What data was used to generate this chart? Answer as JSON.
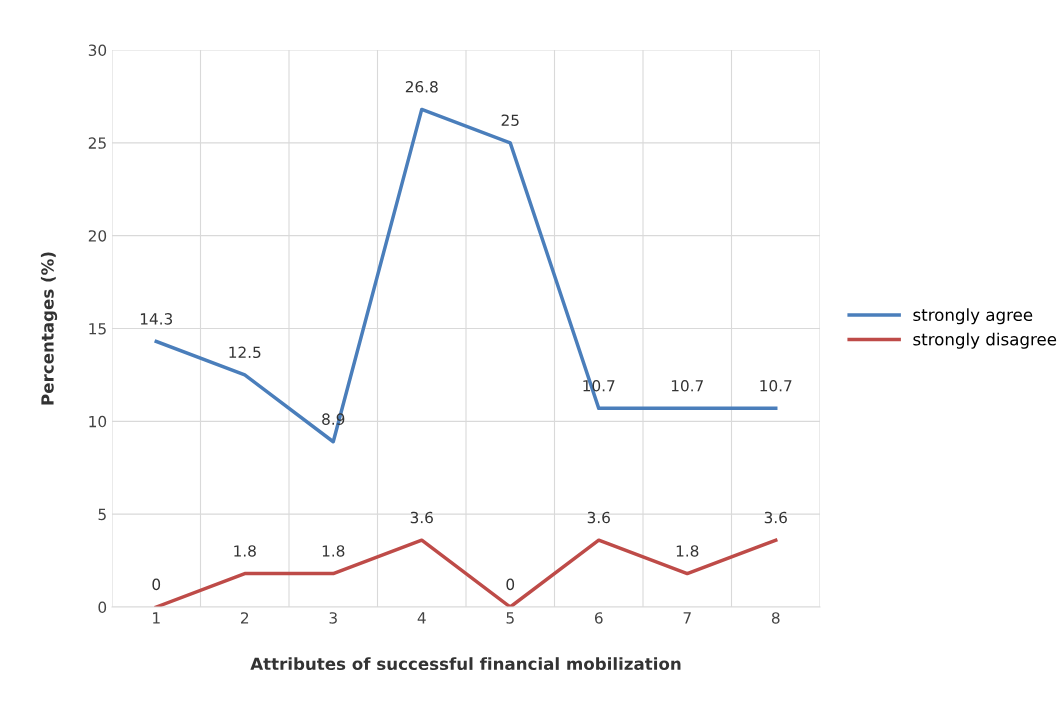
{
  "chart_data": {
    "type": "line",
    "xlabel": "Attributes of successful financial mobilization",
    "ylabel": "Percentages (%)",
    "categories": [
      "1",
      "2",
      "3",
      "4",
      "5",
      "6",
      "7",
      "8"
    ],
    "series": [
      {
        "name": "strongly agree",
        "color": "#4a7ebb",
        "values": [
          14.3,
          12.5,
          8.9,
          26.8,
          25,
          10.7,
          10.7,
          10.7
        ]
      },
      {
        "name": "strongly disagree",
        "color": "#be4b48",
        "values": [
          0,
          1.8,
          1.8,
          3.6,
          0,
          3.6,
          1.8,
          3.6
        ]
      }
    ],
    "ylim": [
      0,
      30
    ],
    "yticks": [
      0,
      5,
      10,
      15,
      20,
      25,
      30
    ],
    "grid": true,
    "legend": "right",
    "data_labels": true,
    "marker": "none",
    "line_style": "solid"
  }
}
